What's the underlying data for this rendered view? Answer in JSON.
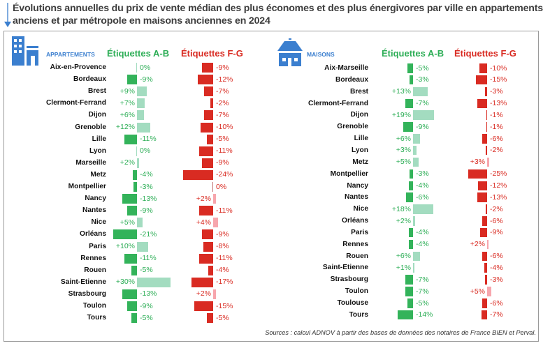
{
  "title": "Évolutions annuelles du prix de vente médian des plus économes et des plus énergivores par ville en appartements anciens et par métropole en maisons anciennes en 2024",
  "source": "Sources : calcul ADNOV à partir des bases de données des notaires de France BIEN et Perval.",
  "colors": {
    "ab_negative": "#33b35a",
    "ab_positive": "#a3dcc0",
    "fg_negative": "#d92b22",
    "fg_positive": "#f7a6ad",
    "ab_text": "#2eae57",
    "fg_text": "#d92b22",
    "icon_blue": "#3b7fcf"
  },
  "panels": {
    "appartements": {
      "label": "APPARTEMENTS",
      "icon": "apartment-building-icon",
      "col_ab": "Étiquettes A-B",
      "col_fg": "Étiquettes F-G"
    },
    "maisons": {
      "label": "MAISONS",
      "icon": "house-icon",
      "col_ab": "Étiquettes A-B",
      "col_fg": "Étiquettes F-G"
    }
  },
  "chart_data": [
    {
      "type": "bar",
      "title": "Appartements anciens (par ville)",
      "orientation": "horizontal",
      "categories": [
        "Aix-en-Provence",
        "Bordeaux",
        "Brest",
        "Clermont-Ferrand",
        "Dijon",
        "Grenoble",
        "Lille",
        "Lyon",
        "Marseille",
        "Metz",
        "Montpellier",
        "Nancy",
        "Nantes",
        "Nice",
        "Orléans",
        "Paris",
        "Rennes",
        "Rouen",
        "Saint-Etienne",
        "Strasbourg",
        "Toulon",
        "Tours"
      ],
      "series": [
        {
          "name": "Étiquettes A-B",
          "values": [
            0,
            -9,
            9,
            7,
            6,
            12,
            -11,
            0,
            2,
            -4,
            -3,
            -13,
            -9,
            5,
            -21,
            10,
            -11,
            -5,
            30,
            -13,
            -9,
            -5
          ]
        },
        {
          "name": "Étiquettes F-G",
          "values": [
            -9,
            -12,
            -7,
            -2,
            -7,
            -10,
            -5,
            -11,
            -9,
            -24,
            0,
            2,
            -11,
            4,
            -9,
            -8,
            -11,
            -4,
            -17,
            2,
            -15,
            -5
          ]
        }
      ],
      "unit": "%",
      "grid": false
    },
    {
      "type": "bar",
      "title": "Maisons anciennes (par métropole)",
      "orientation": "horizontal",
      "categories": [
        "Aix-Marseille",
        "Bordeaux",
        "Brest",
        "Clermont-Ferrand",
        "Dijon",
        "Grenoble",
        "Lille",
        "Lyon",
        "Metz",
        "Montpellier",
        "Nancy",
        "Nantes",
        "Nice",
        "Orléans",
        "Paris",
        "Rennes",
        "Rouen",
        "Saint-Etienne",
        "Strasbourg",
        "Toulon",
        "Toulouse",
        "Tours"
      ],
      "series": [
        {
          "name": "Étiquettes A-B",
          "values": [
            -5,
            -3,
            13,
            -7,
            19,
            -9,
            6,
            3,
            5,
            -3,
            -4,
            -6,
            18,
            2,
            -4,
            -4,
            6,
            1,
            -7,
            -7,
            -5,
            -14
          ]
        },
        {
          "name": "Étiquettes F-G",
          "values": [
            -10,
            -15,
            -3,
            -13,
            -1,
            -1,
            -6,
            -2,
            3,
            -25,
            -12,
            -13,
            -2,
            -6,
            -9,
            2,
            -6,
            -4,
            -3,
            5,
            -6,
            -7
          ]
        }
      ],
      "unit": "%",
      "grid": false
    }
  ]
}
